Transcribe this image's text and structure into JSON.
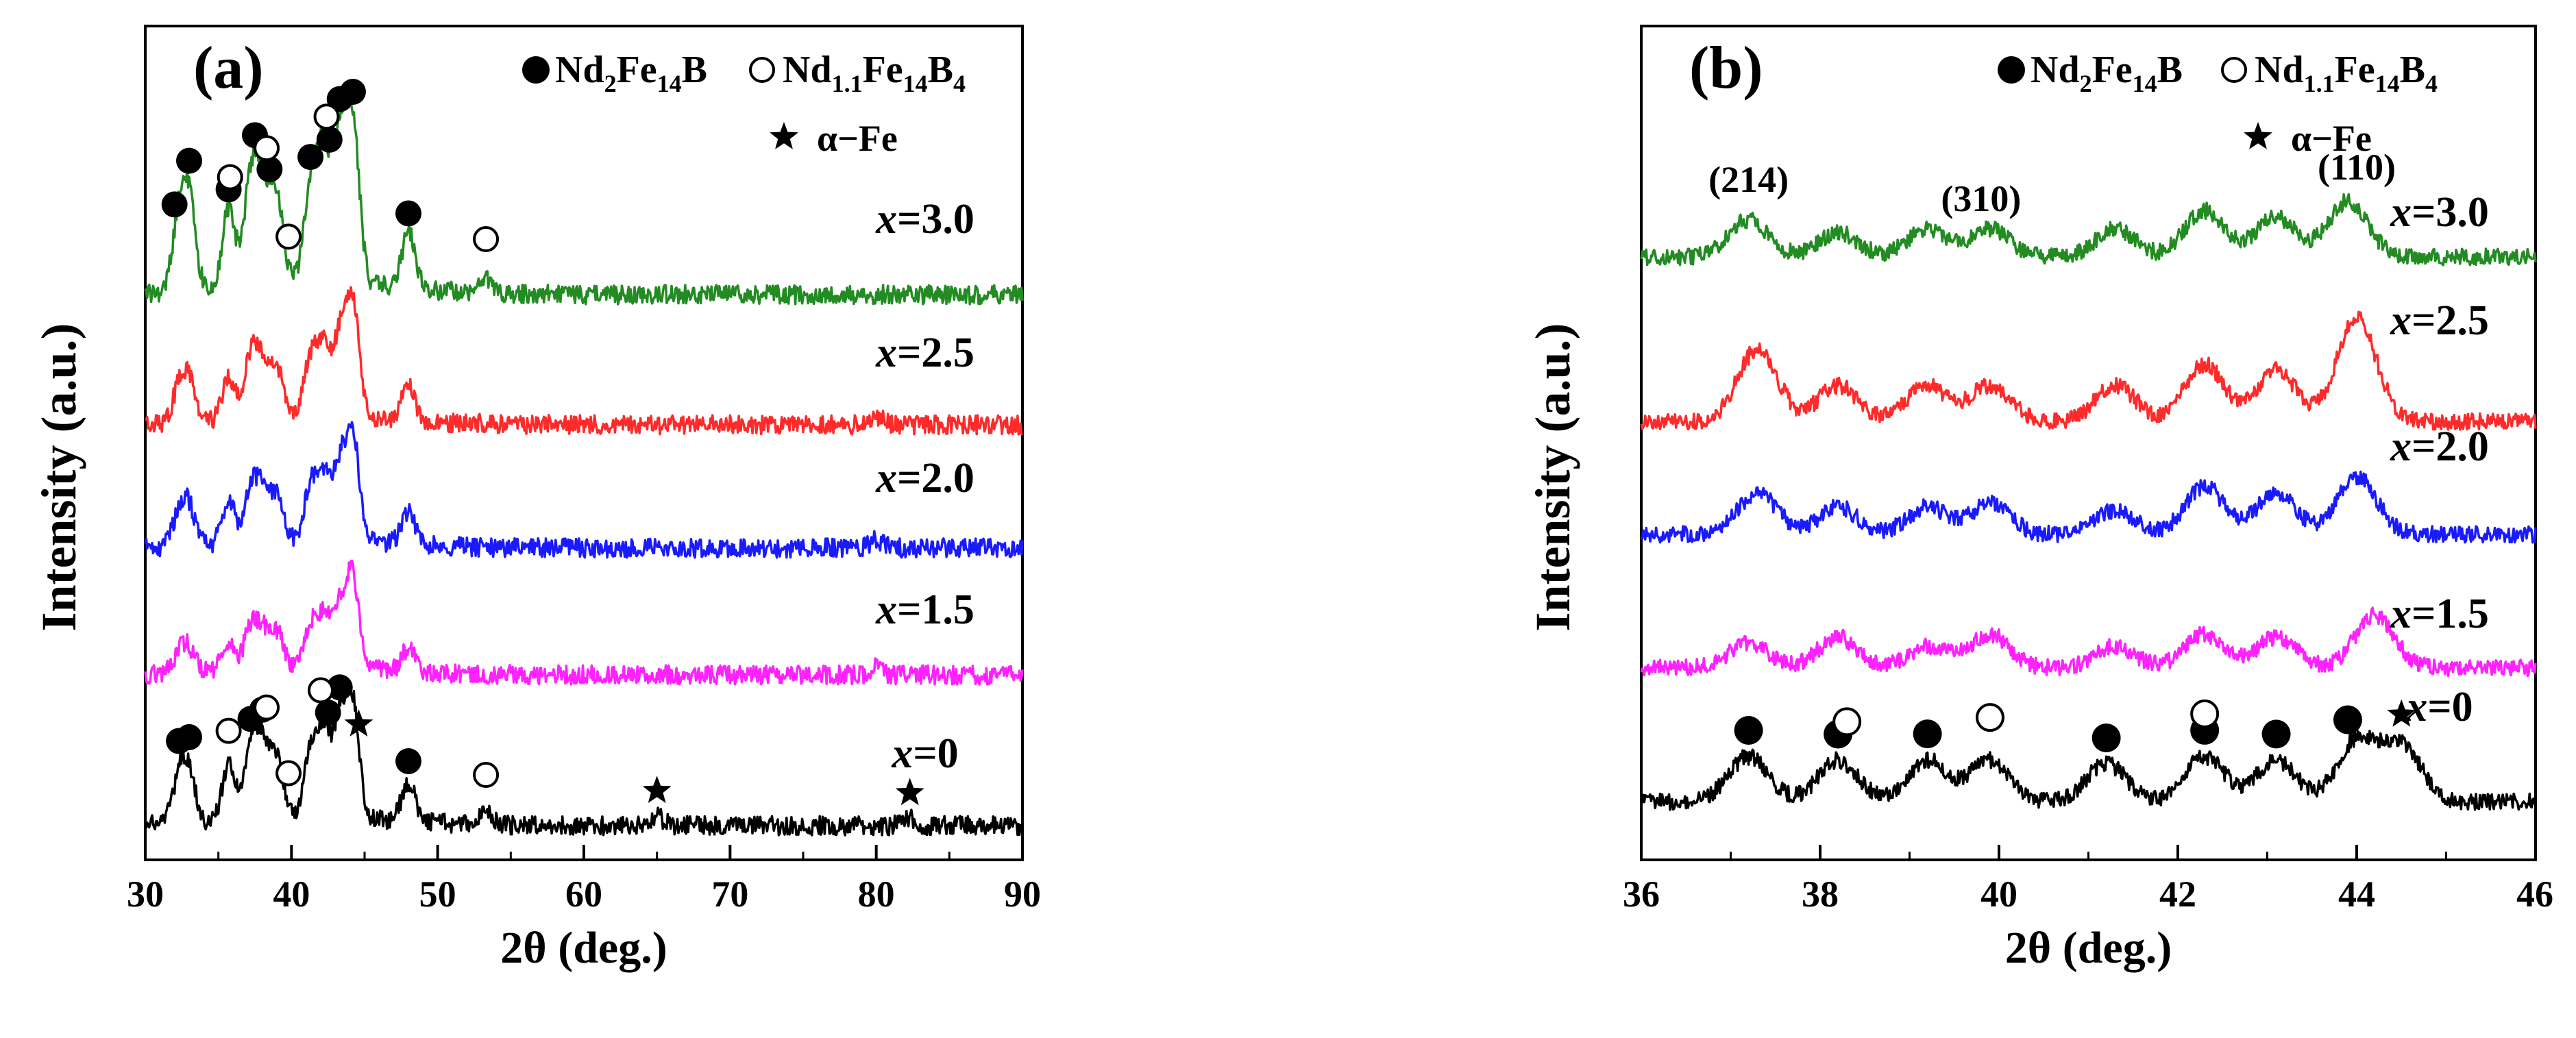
{
  "chart_data": [
    {
      "type": "line",
      "panel_label": "(a)",
      "xlabel": "2θ (deg.)",
      "ylabel": "Intensity (a.u.)",
      "xlim": [
        30,
        90
      ],
      "xticks": [
        "30",
        "40",
        "50",
        "60",
        "70",
        "80",
        "90"
      ],
      "legend": {
        "filled_circle": {
          "name": "Nd",
          "sub1": "2",
          "mid": "Fe",
          "sub2": "14",
          "end": "B"
        },
        "open_circle": {
          "name": "Nd",
          "sub1": "1.1",
          "mid": "Fe",
          "sub2": "14",
          "end": "B",
          "sub3": "4"
        },
        "star": "α−Fe"
      },
      "series": [
        {
          "name": "x=3.0",
          "label_var": "x",
          "label_val": "=3.0",
          "color": "#228b22",
          "peaks": [
            32.3,
            33.0,
            35.7,
            37.2,
            38.0,
            39.0,
            41.3,
            42.2,
            43.3,
            44.2,
            48.0,
            53.3
          ],
          "peak_heights": [
            0.45,
            0.55,
            0.5,
            0.65,
            0.6,
            0.55,
            0.6,
            0.8,
            0.9,
            1.0,
            0.35,
            0.1
          ]
        },
        {
          "name": "x=2.5",
          "label_var": "x",
          "label_val": "=2.5",
          "color": "#ff2a2a",
          "peaks": [
            32.3,
            33.0,
            35.7,
            37.2,
            38.0,
            39.0,
            41.3,
            42.2,
            43.3,
            44.2,
            48.0,
            80.0
          ],
          "peak_heights": [
            0.3,
            0.35,
            0.4,
            0.55,
            0.45,
            0.45,
            0.5,
            0.6,
            0.7,
            1.0,
            0.3,
            0.08
          ]
        },
        {
          "name": "x=2.0",
          "label_var": "x",
          "label_val": "=2.0",
          "color": "#1a1aff",
          "peaks": [
            32.3,
            33.0,
            35.7,
            37.2,
            38.0,
            39.0,
            41.3,
            42.2,
            43.3,
            44.2,
            48.0,
            80.0
          ],
          "peak_heights": [
            0.3,
            0.35,
            0.4,
            0.5,
            0.45,
            0.45,
            0.5,
            0.6,
            0.7,
            1.0,
            0.3,
            0.08
          ]
        },
        {
          "name": "x=1.5",
          "label_var": "x",
          "label_val": "=1.5",
          "color": "#ff22ff",
          "peaks": [
            32.3,
            33.0,
            35.7,
            37.2,
            38.0,
            39.0,
            41.3,
            42.2,
            43.3,
            44.2,
            48.0,
            80.0
          ],
          "peak_heights": [
            0.2,
            0.25,
            0.3,
            0.45,
            0.4,
            0.4,
            0.45,
            0.55,
            0.65,
            1.0,
            0.25,
            0.08
          ]
        },
        {
          "name": "x=0",
          "label_var": "x",
          "label_val": "=0",
          "color": "#000000",
          "peaks": [
            32.3,
            33.0,
            35.7,
            37.2,
            38.0,
            39.0,
            41.3,
            42.2,
            43.3,
            44.2,
            48.0,
            53.3,
            65.0,
            82.3
          ],
          "peak_heights": [
            0.4,
            0.45,
            0.5,
            0.6,
            0.65,
            0.55,
            0.6,
            0.75,
            0.85,
            1.0,
            0.35,
            0.1,
            0.08,
            0.06
          ]
        }
      ],
      "markers": [
        {
          "series": "x=3.0",
          "type": "filled_circle",
          "x": [
            32.0,
            33.0,
            35.7,
            37.5,
            38.5,
            41.3,
            42.6,
            43.3,
            44.2,
            48.0
          ]
        },
        {
          "series": "x=3.0",
          "type": "open_circle",
          "x": [
            35.8,
            38.3,
            39.8,
            42.4,
            53.3
          ]
        },
        {
          "series": "x=0",
          "type": "filled_circle",
          "x": [
            32.3,
            33.0,
            37.2,
            38.0,
            42.5,
            43.3,
            48.0
          ]
        },
        {
          "series": "x=0",
          "type": "open_circle",
          "x": [
            35.7,
            38.3,
            39.8,
            42.0,
            53.3
          ]
        },
        {
          "series": "x=0",
          "type": "star",
          "x": [
            44.6,
            65.0,
            82.3
          ]
        }
      ]
    },
    {
      "type": "line",
      "panel_label": "(b)",
      "xlabel": "2θ (deg.)",
      "ylabel": "Intensity (a.u.)",
      "xlim": [
        36,
        46
      ],
      "xticks": [
        "36",
        "38",
        "40",
        "42",
        "44",
        "46"
      ],
      "legend": {
        "filled_circle": {
          "name": "Nd",
          "sub1": "2",
          "mid": "Fe",
          "sub2": "14",
          "end": "B"
        },
        "open_circle": {
          "name": "Nd",
          "sub1": "1.1",
          "mid": "Fe",
          "sub2": "14",
          "end": "B",
          "sub3": "4"
        },
        "star": "α−Fe"
      },
      "annotations": [
        {
          "text": "(214)",
          "x": 37.2
        },
        {
          "text": "(310)",
          "x": 39.8
        },
        {
          "text": "(110)",
          "x": 44.0
        }
      ],
      "series": [
        {
          "name": "x=3.0",
          "label_var": "x",
          "label_val": "=3.0",
          "color": "#228b22",
          "peaks": [
            37.2,
            38.2,
            39.2,
            39.9,
            41.3,
            42.3,
            43.1,
            43.9
          ],
          "peak_heights": [
            0.6,
            0.4,
            0.45,
            0.45,
            0.45,
            0.75,
            0.65,
            0.9
          ]
        },
        {
          "name": "x=2.5",
          "label_var": "x",
          "label_val": "=2.5",
          "color": "#ff2a2a",
          "peaks": [
            37.3,
            38.2,
            39.2,
            39.9,
            41.3,
            42.3,
            43.1,
            44.0
          ],
          "peak_heights": [
            0.7,
            0.35,
            0.35,
            0.35,
            0.35,
            0.55,
            0.5,
            1.0
          ]
        },
        {
          "name": "x=2.0",
          "label_var": "x",
          "label_val": "=2.0",
          "color": "#1a1aff",
          "peaks": [
            37.3,
            38.2,
            39.2,
            39.9,
            41.3,
            42.3,
            43.1,
            44.0
          ],
          "peak_heights": [
            0.6,
            0.4,
            0.4,
            0.45,
            0.35,
            0.7,
            0.6,
            0.85
          ]
        },
        {
          "name": "x=1.5",
          "label_var": "x",
          "label_val": "=1.5",
          "color": "#ff22ff",
          "peaks": [
            37.2,
            38.2,
            39.2,
            39.9,
            41.3,
            42.3,
            43.1,
            44.2
          ],
          "peak_heights": [
            0.4,
            0.5,
            0.35,
            0.55,
            0.35,
            0.55,
            0.5,
            0.85
          ]
        },
        {
          "name": "x=0",
          "label_var": "x",
          "label_val": "=0",
          "color": "#000000",
          "peaks": [
            37.2,
            38.2,
            39.2,
            39.9,
            41.2,
            42.3,
            43.1,
            44.0,
            44.5
          ],
          "peak_heights": [
            0.6,
            0.55,
            0.55,
            0.55,
            0.5,
            0.6,
            0.55,
            0.8,
            0.75
          ]
        }
      ],
      "markers": [
        {
          "series": "x=0",
          "type": "filled_circle",
          "x": [
            37.2,
            38.2,
            39.2,
            41.2,
            42.3,
            43.1,
            43.9
          ]
        },
        {
          "series": "x=0",
          "type": "open_circle",
          "x": [
            38.3,
            39.9,
            42.3
          ]
        },
        {
          "series": "x=0",
          "type": "star",
          "x": [
            44.5
          ]
        }
      ]
    }
  ]
}
